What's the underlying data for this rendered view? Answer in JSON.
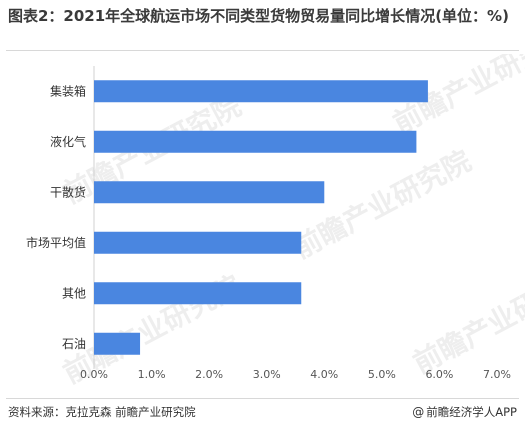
{
  "header": {
    "title": "图表2：2021年全球航运市场不同类型货物贸易量同比增长情况(单位：%)"
  },
  "chart_data": {
    "type": "bar",
    "orientation": "horizontal",
    "title": "图表2：2021年全球航运市场不同类型货物贸易量同比增长情况(单位：%)",
    "xlabel": "",
    "ylabel": "",
    "categories": [
      "集装箱",
      "液化气",
      "干散货",
      "市场平均值",
      "其他",
      "石油"
    ],
    "values": [
      5.8,
      5.6,
      4.0,
      3.6,
      3.6,
      0.8
    ],
    "unit": "%",
    "xlim": [
      0,
      7
    ],
    "x_ticks": [
      "0.0%",
      "1.0%",
      "2.0%",
      "3.0%",
      "4.0%",
      "5.0%",
      "6.0%",
      "7.0%"
    ],
    "bar_color": "#4a86e0",
    "grid": true,
    "legend": "none"
  },
  "footer": {
    "source": "资料来源：克拉克森 前瞻产业研究院",
    "brand_icon": "attribution-icon",
    "brand_icon_glyph": "@",
    "brand_name": "前瞻经济学人APP"
  },
  "watermark": {
    "text": "前瞻产业研究院"
  }
}
